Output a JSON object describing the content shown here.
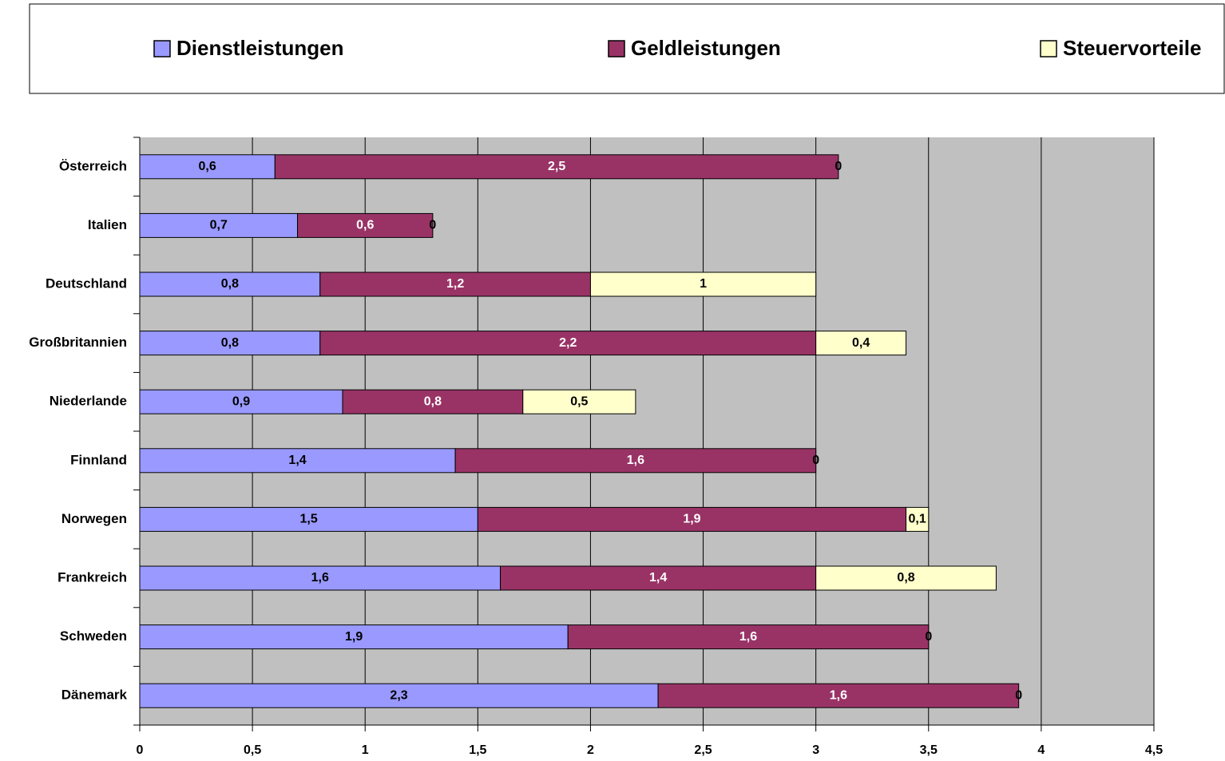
{
  "chart_data": {
    "type": "stacked-bar-horizontal",
    "categories": [
      "Österreich",
      "Italien",
      "Deutschland",
      "Großbritannien",
      "Niederlande",
      "Finnland",
      "Norwegen",
      "Frankreich",
      "Schweden",
      "Dänemark"
    ],
    "series": [
      {
        "name": "Dienstleistungen",
        "color": "#9999ff",
        "label_color": "#000000",
        "values": [
          0.6,
          0.7,
          0.8,
          0.8,
          0.9,
          1.4,
          1.5,
          1.6,
          1.9,
          2.3
        ],
        "value_labels": [
          "0,6",
          "0,7",
          "0,8",
          "0,8",
          "0,9",
          "1,4",
          "1,5",
          "1,6",
          "1,9",
          "2,3"
        ]
      },
      {
        "name": "Geldleistungen",
        "color": "#993366",
        "label_color": "#ffffff",
        "values": [
          2.5,
          0.6,
          1.2,
          2.2,
          0.8,
          1.6,
          1.9,
          1.4,
          1.6,
          1.6
        ],
        "value_labels": [
          "2,5",
          "0,6",
          "1,2",
          "2,2",
          "0,8",
          "1,6",
          "1,9",
          "1,4",
          "1,6",
          "1,6"
        ]
      },
      {
        "name": "Steuervorteile",
        "color": "#ffffcc",
        "label_color": "#000000",
        "values": [
          0,
          0,
          1,
          0.4,
          0.5,
          0,
          0.1,
          0.8,
          0,
          0
        ],
        "value_labels": [
          "0",
          "0",
          "1",
          "0,4",
          "0,5",
          "0",
          "0,1",
          "0,8",
          "0",
          "0"
        ]
      }
    ],
    "xlim": [
      0,
      4.5
    ],
    "xticks": [
      0,
      {
        "value": 0.5,
        "label": "0,5"
      },
      1,
      {
        "value": 1.5,
        "label": "1,5"
      },
      2,
      {
        "value": 2.5,
        "label": "2,5"
      },
      3,
      {
        "value": 3.5,
        "label": "3,5"
      },
      4,
      {
        "value": 4.5,
        "label": "4,5"
      }
    ],
    "grid": true,
    "plot_background": "#c0c0c0",
    "legend": "top"
  }
}
